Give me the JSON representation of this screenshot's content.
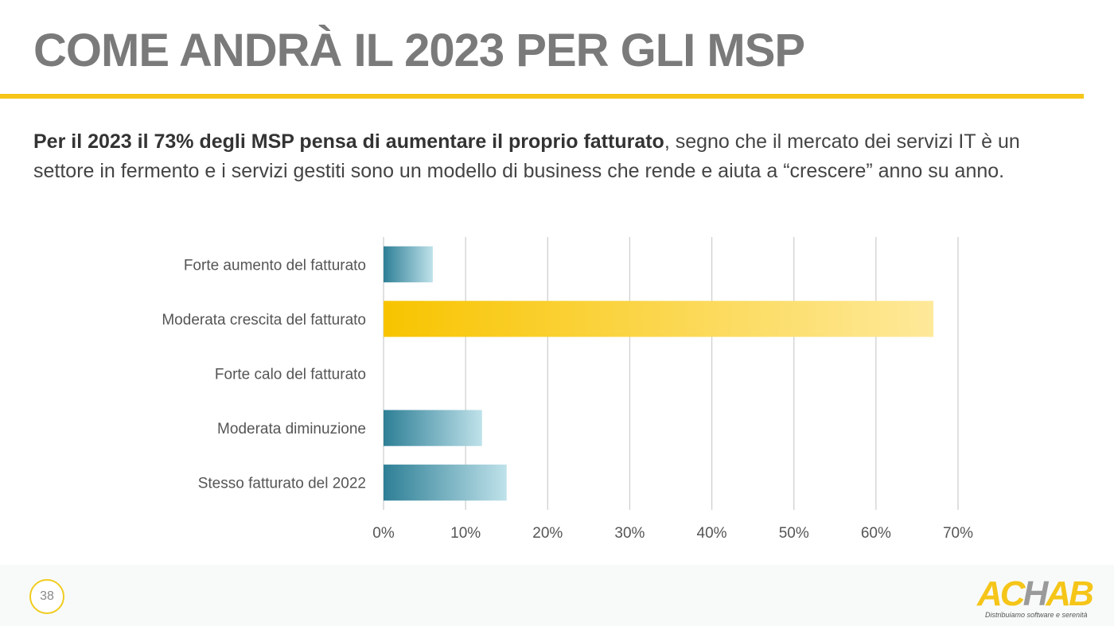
{
  "slide": {
    "title": "COME ANDRÀ IL 2023 PER GLI MSP",
    "intro_bold": "Per il 2023 il 73% degli MSP pensa di aumentare il proprio fatturato",
    "intro_rest": ", segno che il mercato dei servizi IT è un settore in fermento e i servizi gestiti sono un modello di business che rende e aiuta a “crescere” anno su anno.",
    "page_number": "38",
    "logo_text_a": "AC",
    "logo_text_h": "H",
    "logo_text_b": "AB",
    "logo_tagline": "Distribuiamo software e serenità",
    "accent_color": "#f5c518"
  },
  "chart_data": {
    "type": "bar",
    "orientation": "horizontal",
    "title": "",
    "xlabel": "",
    "ylabel": "",
    "categories": [
      "Forte aumento del fatturato",
      "Moderata crescita del fatturato",
      "Forte calo del fatturato",
      "Moderata diminuzione",
      "Stesso fatturato del 2022"
    ],
    "values": [
      6,
      67,
      0,
      12,
      15
    ],
    "value_unit": "%",
    "highlight": [
      false,
      true,
      false,
      false,
      false
    ],
    "colors": {
      "default_start": "#2e7f96",
      "default_end": "#bfe2ea",
      "highlight_start": "#f8c400",
      "highlight_end": "#fee99a",
      "grid": "#d0d0d0"
    },
    "xlim": [
      0,
      70
    ],
    "xticks": [
      "0%",
      "10%",
      "20%",
      "30%",
      "40%",
      "50%",
      "60%",
      "70%"
    ],
    "grid": true,
    "legend": "none"
  }
}
